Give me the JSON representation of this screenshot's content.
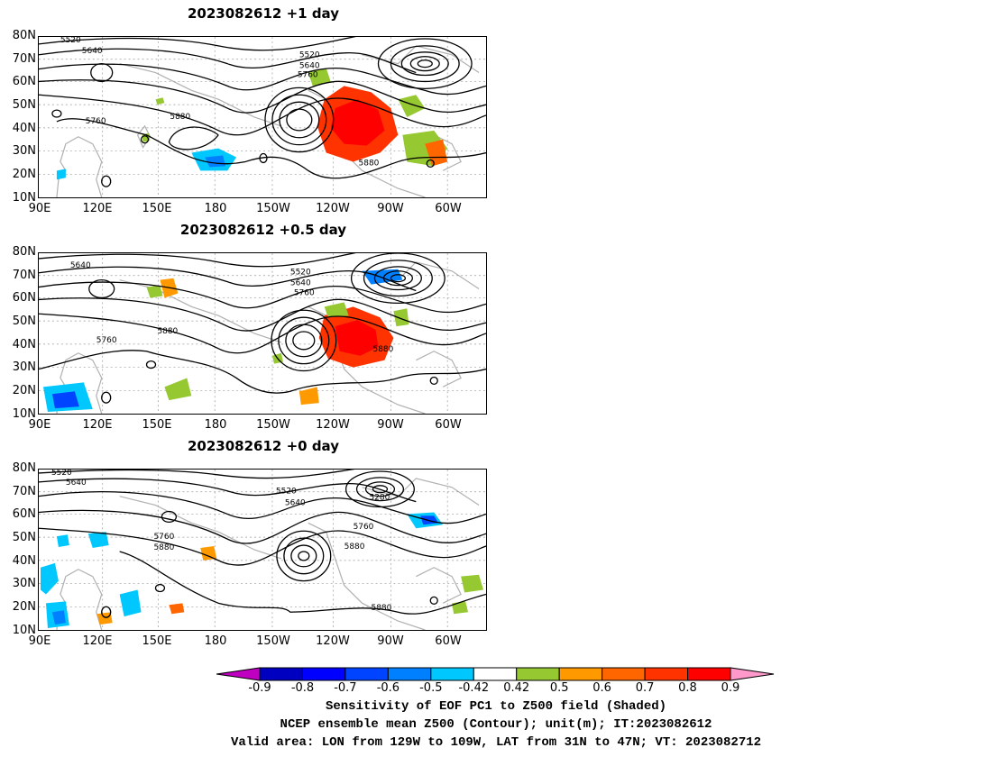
{
  "panels": [
    {
      "title": "2023082612  +1 day",
      "contour_labels": [
        "5520",
        "5640",
        "5520",
        "5640",
        "5760",
        "5760",
        "5880",
        "5880"
      ]
    },
    {
      "title": "2023082612  +0.5 day",
      "contour_labels": [
        "5640",
        "5520",
        "5640",
        "5760",
        "5760",
        "5880",
        "5880"
      ]
    },
    {
      "title": "2023082612  +0 day",
      "contour_labels": [
        "5520",
        "5640",
        "5520",
        "5640",
        "5280",
        "5760",
        "5880",
        "5760",
        "5880",
        "5880"
      ]
    }
  ],
  "axes": {
    "lat_labels": [
      "80N",
      "70N",
      "60N",
      "50N",
      "40N",
      "30N",
      "20N",
      "10N"
    ],
    "lon_labels": [
      "90E",
      "120E",
      "150E",
      "180",
      "150W",
      "120W",
      "90W",
      "60W"
    ]
  },
  "colorbar": {
    "ticks": [
      "-0.9",
      "-0.8",
      "-0.7",
      "-0.6",
      "-0.5",
      "-0.42",
      "0.42",
      "0.5",
      "0.6",
      "0.7",
      "0.8",
      "0.9"
    ],
    "colors": [
      "#0000c0",
      "#0000ff",
      "#0044ff",
      "#0080ff",
      "#00c8ff",
      "#ffffff",
      "#96c832",
      "#ff9900",
      "#ff6600",
      "#ff3300",
      "#ff0000"
    ],
    "low_end_color": "#c000c0",
    "high_end_color": "#ff99cc"
  },
  "caption": [
    "Sensitivity of EOF PC1 to Z500 field (Shaded)",
    "NCEP ensemble mean Z500 (Contour); unit(m); IT:2023082612",
    "Valid area: LON from 129W to 109W, LAT from 31N to 47N; VT: 2023082712"
  ]
}
